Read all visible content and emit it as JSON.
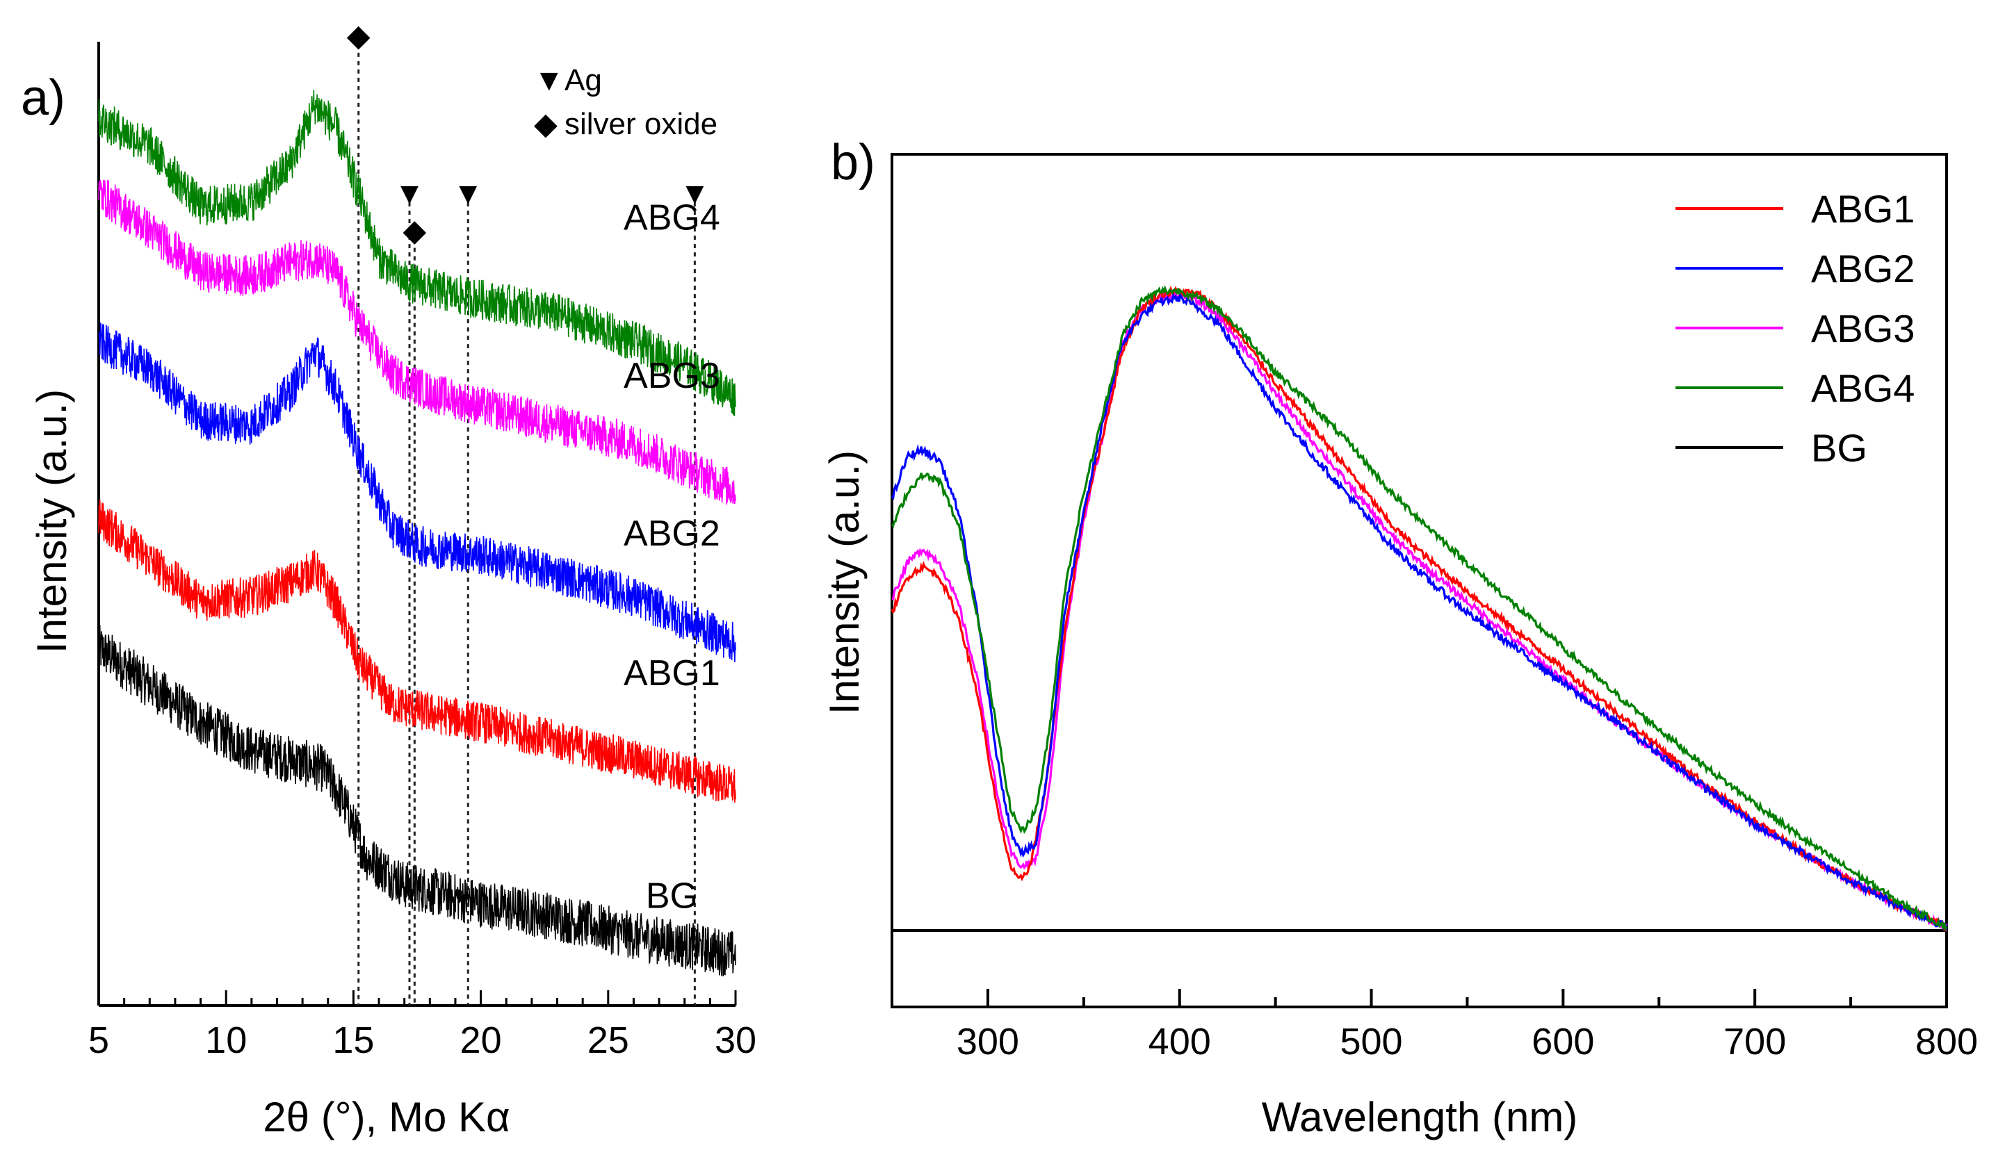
{
  "chart_data": [
    {
      "panel": "a)",
      "type": "line",
      "xlabel": "2θ (°), Mo Kα",
      "ylabel": "Intensity (a.u.)",
      "xlim": [
        5,
        30
      ],
      "xticks": [
        5,
        10,
        15,
        20,
        25,
        30
      ],
      "ylim": [
        0,
        100
      ],
      "marker_legend": [
        {
          "symbol": "▼",
          "label": "Ag"
        },
        {
          "symbol": "◆",
          "label": "silver oxide"
        }
      ],
      "reference_lines": [
        {
          "x": 15.2,
          "marker": "◆",
          "marker_level": 103
        },
        {
          "x": 17.2,
          "marker": "▼",
          "marker_level": 86
        },
        {
          "x": 17.4,
          "marker": "◆",
          "marker_level": 82
        },
        {
          "x": 19.5,
          "marker": "▼",
          "marker_level": 86
        },
        {
          "x": 28.4,
          "marker": "▼",
          "marker_level": 86
        }
      ],
      "series": [
        {
          "name": "BG",
          "color": "#000000",
          "noise": 2.6,
          "label_x": 27.5,
          "label_level": 9,
          "points": [
            [
              5,
              37
            ],
            [
              7,
              33
            ],
            [
              9,
              29
            ],
            [
              11,
              26
            ],
            [
              12.5,
              25
            ],
            [
              13.8,
              24
            ],
            [
              14.6,
              20.5
            ],
            [
              15.5,
              14.5
            ],
            [
              17,
              11.5
            ],
            [
              20,
              9.5
            ],
            [
              23,
              8
            ],
            [
              26,
              6
            ],
            [
              28,
              5
            ],
            [
              30,
              4
            ]
          ]
        },
        {
          "name": "ABG1",
          "color": "#ff0000",
          "noise": 2.2,
          "label_x": 27.5,
          "label_level": 33,
          "points": [
            [
              5,
              51
            ],
            [
              7,
              46.5
            ],
            [
              9,
              42
            ],
            [
              11,
              42.5
            ],
            [
              12.5,
              44
            ],
            [
              13.5,
              45.5
            ],
            [
              14.3,
              42
            ],
            [
              15.2,
              35.5
            ],
            [
              16.5,
              31
            ],
            [
              18,
              30
            ],
            [
              20,
              29
            ],
            [
              23,
              27
            ],
            [
              26,
              25
            ],
            [
              28,
              23.5
            ],
            [
              30,
              22
            ]
          ]
        },
        {
          "name": "ABG2",
          "color": "#0000ff",
          "noise": 2.2,
          "label_x": 27.5,
          "label_level": 48,
          "points": [
            [
              5,
              70
            ],
            [
              7,
              67
            ],
            [
              9,
              61.5
            ],
            [
              11,
              61
            ],
            [
              12.5,
              64.5
            ],
            [
              13.5,
              69
            ],
            [
              14.3,
              65
            ],
            [
              15.2,
              58
            ],
            [
              16.5,
              50
            ],
            [
              17.5,
              48
            ],
            [
              20,
              47
            ],
            [
              23,
              45
            ],
            [
              26,
              42.5
            ],
            [
              28,
              40
            ],
            [
              30,
              37.5
            ]
          ]
        },
        {
          "name": "ABG3",
          "color": "#ff00ff",
          "noise": 2.2,
          "label_x": 27.5,
          "label_level": 65,
          "points": [
            [
              5,
              86
            ],
            [
              7,
              82
            ],
            [
              9,
              77.5
            ],
            [
              11,
              77
            ],
            [
              12.5,
              78.5
            ],
            [
              13.5,
              79
            ],
            [
              14.3,
              77.5
            ],
            [
              15.2,
              72
            ],
            [
              16.5,
              66.5
            ],
            [
              18,
              64.5
            ],
            [
              20,
              63
            ],
            [
              23,
              61
            ],
            [
              26,
              59
            ],
            [
              28,
              56.5
            ],
            [
              30,
              54
            ]
          ]
        },
        {
          "name": "ABG4",
          "color": "#008000",
          "noise": 2.2,
          "label_x": 27.5,
          "label_level": 82,
          "points": [
            [
              5,
              94
            ],
            [
              7,
              91
            ],
            [
              9,
              84.5
            ],
            [
              11,
              85
            ],
            [
              12.5,
              89
            ],
            [
              13.5,
              95.5
            ],
            [
              14.3,
              93
            ],
            [
              15.2,
              86
            ],
            [
              16,
              79
            ],
            [
              17,
              76.5
            ],
            [
              19,
              75
            ],
            [
              21,
              74
            ],
            [
              23,
              73
            ],
            [
              26,
              70
            ],
            [
              28,
              67.5
            ],
            [
              30,
              64
            ]
          ]
        }
      ]
    },
    {
      "panel": "b)",
      "type": "line",
      "xlabel": "Wavelength (nm)",
      "ylabel": "Intensity (a.u.)",
      "xlim": [
        250,
        800
      ],
      "xticks": [
        300,
        400,
        500,
        600,
        700,
        800
      ],
      "ylim": [
        0,
        100
      ],
      "legend_position": "top-right",
      "series": [
        {
          "name": "ABG1",
          "color": "#ff0000",
          "noise": 0.5,
          "points": [
            [
              250,
              45
            ],
            [
              258,
              50
            ],
            [
              266,
              51.5
            ],
            [
              275,
              50
            ],
            [
              285,
              44
            ],
            [
              295,
              33
            ],
            [
              305,
              17
            ],
            [
              312,
              9
            ],
            [
              316,
              7
            ],
            [
              322,
              9
            ],
            [
              330,
              20
            ],
            [
              340,
              42
            ],
            [
              350,
              59
            ],
            [
              360,
              70
            ],
            [
              370,
              82
            ],
            [
              380,
              88
            ],
            [
              390,
              90
            ],
            [
              400,
              90.5
            ],
            [
              410,
              90
            ],
            [
              420,
              88
            ],
            [
              435,
              83
            ],
            [
              450,
              77.5
            ],
            [
              470,
              71
            ],
            [
              490,
              64.5
            ],
            [
              510,
              57.5
            ],
            [
              530,
              52.5
            ],
            [
              550,
              48
            ],
            [
              575,
              42.5
            ],
            [
              600,
              37
            ],
            [
              625,
              31.5
            ],
            [
              650,
              26
            ],
            [
              675,
              20.5
            ],
            [
              700,
              15.5
            ],
            [
              725,
              11
            ],
            [
              750,
              7
            ],
            [
              775,
              3.5
            ],
            [
              800,
              0.5
            ]
          ]
        },
        {
          "name": "ABG2",
          "color": "#0000ff",
          "noise": 0.55,
          "points": [
            [
              250,
              61
            ],
            [
              258,
              67
            ],
            [
              265,
              68
            ],
            [
              275,
              66.5
            ],
            [
              285,
              59
            ],
            [
              295,
              44
            ],
            [
              305,
              24
            ],
            [
              312,
              14
            ],
            [
              318,
              11
            ],
            [
              325,
              12
            ],
            [
              332,
              24
            ],
            [
              340,
              45
            ],
            [
              350,
              59
            ],
            [
              360,
              72
            ],
            [
              370,
              83
            ],
            [
              380,
              87
            ],
            [
              390,
              89
            ],
            [
              400,
              89.5
            ],
            [
              410,
              88
            ],
            [
              420,
              86
            ],
            [
              435,
              80
            ],
            [
              450,
              74
            ],
            [
              470,
              67
            ],
            [
              490,
              61
            ],
            [
              510,
              54.5
            ],
            [
              530,
              49.5
            ],
            [
              550,
              45
            ],
            [
              575,
              40
            ],
            [
              600,
              35
            ],
            [
              625,
              30
            ],
            [
              650,
              25
            ],
            [
              675,
              20
            ],
            [
              700,
              15
            ],
            [
              725,
              11
            ],
            [
              750,
              7
            ],
            [
              775,
              3.5
            ],
            [
              800,
              0.5
            ]
          ]
        },
        {
          "name": "ABG3",
          "color": "#ff00ff",
          "noise": 0.5,
          "points": [
            [
              250,
              47
            ],
            [
              258,
              52
            ],
            [
              266,
              54
            ],
            [
              275,
              52
            ],
            [
              285,
              46
            ],
            [
              295,
              35
            ],
            [
              305,
              19
            ],
            [
              312,
              11
            ],
            [
              318,
              9
            ],
            [
              325,
              10
            ],
            [
              332,
              20
            ],
            [
              340,
              41
            ],
            [
              350,
              58
            ],
            [
              360,
              70
            ],
            [
              370,
              83
            ],
            [
              380,
              88
            ],
            [
              390,
              89.5
            ],
            [
              400,
              90
            ],
            [
              410,
              89
            ],
            [
              420,
              87
            ],
            [
              435,
              82
            ],
            [
              450,
              76
            ],
            [
              470,
              69
            ],
            [
              490,
              62.5
            ],
            [
              510,
              56
            ],
            [
              530,
              51
            ],
            [
              550,
              46.5
            ],
            [
              575,
              41
            ],
            [
              600,
              35.5
            ],
            [
              625,
              30
            ],
            [
              650,
              25
            ],
            [
              675,
              20
            ],
            [
              700,
              15
            ],
            [
              725,
              11
            ],
            [
              750,
              7
            ],
            [
              775,
              3.5
            ],
            [
              800,
              0.5
            ]
          ]
        },
        {
          "name": "ABG4",
          "color": "#008000",
          "noise": 0.5,
          "points": [
            [
              250,
              57
            ],
            [
              258,
              62
            ],
            [
              266,
              64.5
            ],
            [
              275,
              63.5
            ],
            [
              285,
              57
            ],
            [
              295,
              44
            ],
            [
              305,
              28
            ],
            [
              312,
              17
            ],
            [
              318,
              14
            ],
            [
              325,
              17
            ],
            [
              332,
              28
            ],
            [
              340,
              48
            ],
            [
              350,
              62
            ],
            [
              360,
              73
            ],
            [
              370,
              84
            ],
            [
              380,
              89
            ],
            [
              390,
              90.5
            ],
            [
              400,
              90.5
            ],
            [
              410,
              89.5
            ],
            [
              420,
              88
            ],
            [
              435,
              84
            ],
            [
              450,
              79
            ],
            [
              470,
              74
            ],
            [
              490,
              68.5
            ],
            [
              510,
              62
            ],
            [
              530,
              57
            ],
            [
              550,
              52
            ],
            [
              575,
              46
            ],
            [
              600,
              40
            ],
            [
              625,
              34
            ],
            [
              650,
              28.5
            ],
            [
              675,
              23
            ],
            [
              700,
              18
            ],
            [
              725,
              13
            ],
            [
              750,
              8.5
            ],
            [
              775,
              4
            ],
            [
              800,
              0.5
            ]
          ]
        },
        {
          "name": "BG",
          "color": "#000000",
          "noise": 0,
          "points": [
            [
              250,
              0
            ],
            [
              800,
              0
            ]
          ]
        }
      ]
    }
  ]
}
